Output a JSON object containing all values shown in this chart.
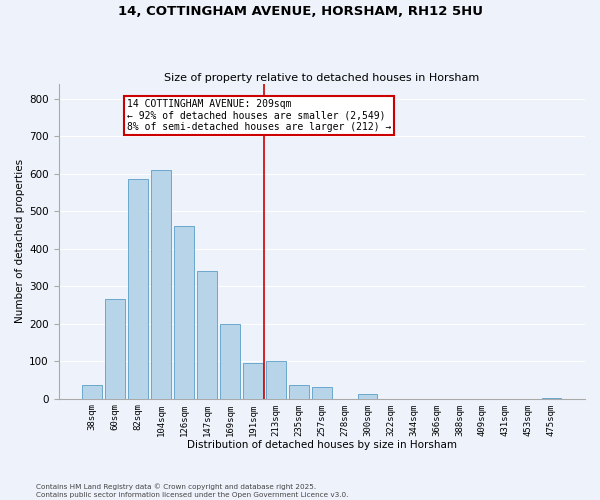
{
  "title": "14, COTTINGHAM AVENUE, HORSHAM, RH12 5HU",
  "subtitle": "Size of property relative to detached houses in Horsham",
  "xlabel": "Distribution of detached houses by size in Horsham",
  "ylabel": "Number of detached properties",
  "bar_color": "#b8d4e8",
  "bar_edge_color": "#5a9ec8",
  "background_color": "#eef2fa",
  "grid_color": "#ffffff",
  "bin_labels": [
    "38sqm",
    "60sqm",
    "82sqm",
    "104sqm",
    "126sqm",
    "147sqm",
    "169sqm",
    "191sqm",
    "213sqm",
    "235sqm",
    "257sqm",
    "278sqm",
    "300sqm",
    "322sqm",
    "344sqm",
    "366sqm",
    "388sqm",
    "409sqm",
    "431sqm",
    "453sqm",
    "475sqm"
  ],
  "bar_heights": [
    37,
    267,
    585,
    610,
    460,
    340,
    200,
    95,
    100,
    37,
    30,
    0,
    13,
    0,
    0,
    0,
    0,
    0,
    0,
    0,
    3
  ],
  "vline_index": 8,
  "vline_color": "#cc0000",
  "annotation_text": "14 COTTINGHAM AVENUE: 209sqm\n← 92% of detached houses are smaller (2,549)\n8% of semi-detached houses are larger (212) →",
  "annotation_box_color": "#ffffff",
  "annotation_box_edge": "#cc0000",
  "ylim": [
    0,
    840
  ],
  "yticks": [
    0,
    100,
    200,
    300,
    400,
    500,
    600,
    700,
    800
  ],
  "footer_line1": "Contains HM Land Registry data © Crown copyright and database right 2025.",
  "footer_line2": "Contains public sector information licensed under the Open Government Licence v3.0."
}
